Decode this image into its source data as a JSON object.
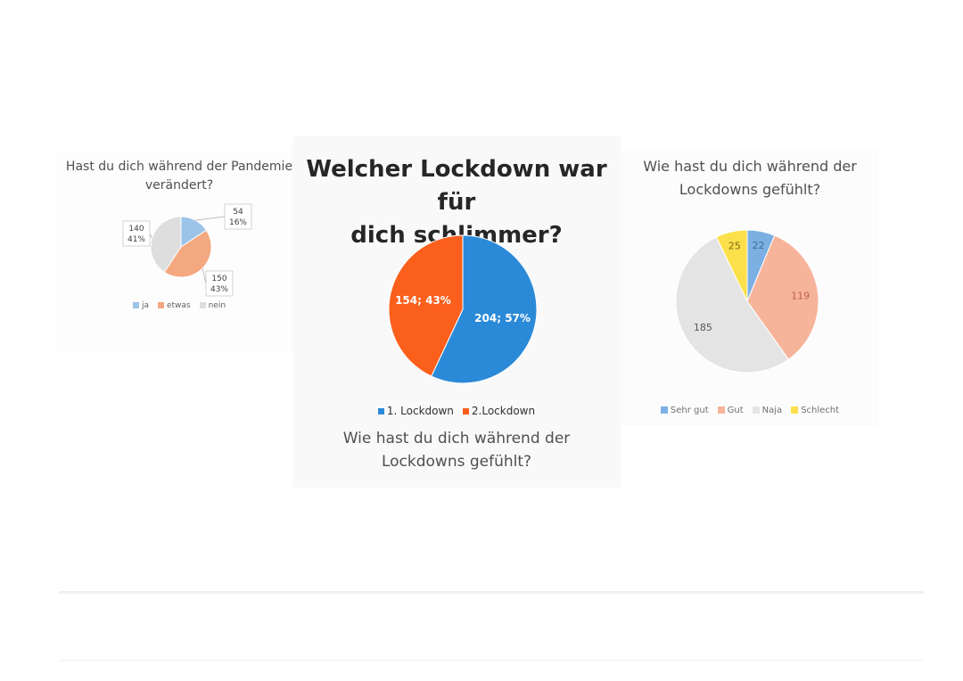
{
  "chart_data": [
    {
      "type": "pie",
      "title": "Hast du dich während der Pandemie verändert?",
      "categories": [
        "ja",
        "etwas",
        "nein"
      ],
      "values": [
        54,
        150,
        140
      ],
      "percent_labels": [
        "16%",
        "43%",
        "41%"
      ],
      "colors": [
        "#9cc3e8",
        "#f4a87f",
        "#dedede"
      ],
      "legend": "bottom",
      "data_labels": "callout boxes with value and percent"
    },
    {
      "type": "pie",
      "title": "Welcher Lockdown war für dich schlimmer?",
      "subtitle": "Wie hast du dich während der Lockdowns gefühlt?",
      "categories": [
        "1. Lockdown",
        "2.Lockdown"
      ],
      "values": [
        204,
        154
      ],
      "data_labels": [
        "204; 57%",
        "154; 43%"
      ],
      "colors": [
        "#2b8ad8",
        "#fb5f1c"
      ],
      "legend": "bottom"
    },
    {
      "type": "pie",
      "title": "Wie hast du dich während der Lockdowns gefühlt?",
      "categories": [
        "Sehr gut",
        "Gut",
        "Naja",
        "Schlecht"
      ],
      "values": [
        22,
        119,
        185,
        25
      ],
      "colors": [
        "#7cb0e2",
        "#f6b49b",
        "#e4e4e4",
        "#fbe04b"
      ],
      "legend": "bottom"
    }
  ]
}
